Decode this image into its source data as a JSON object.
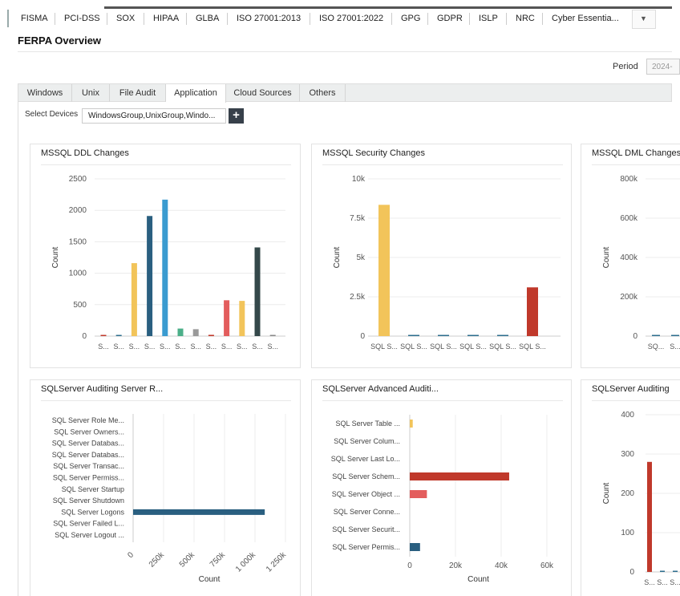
{
  "compliance_tabs": [
    "FISMA",
    "PCI-DSS",
    "SOX",
    "HIPAA",
    "GLBA",
    "ISO 27001:2013",
    "ISO 27001:2022",
    "GPG",
    "GDPR",
    "ISLP",
    "NRC",
    "Cyber Essentia..."
  ],
  "dropdown_icon": "caret-down-icon",
  "page_title": "FERPA Overview",
  "period": {
    "label": "Period",
    "value": "2024-"
  },
  "category_tabs": [
    "Windows",
    "Unix",
    "File Audit",
    "Application",
    "Cloud Sources",
    "Others"
  ],
  "active_category": "Application",
  "select_devices": {
    "label": "Select Devices",
    "value": "WindowsGroup,UnixGroup,Windo...",
    "add_label": "+"
  },
  "charts": {
    "ddl": {
      "title": "MSSQL DDL Changes",
      "chart_data": {
        "type": "bar",
        "ylabel": "Count",
        "ylim": [
          0,
          2500
        ],
        "yticks": [
          "0",
          "500",
          "1000",
          "1500",
          "2000",
          "2500"
        ],
        "categories": [
          "S...",
          "S...",
          "S...",
          "S...",
          "S...",
          "S...",
          "S...",
          "S...",
          "S...",
          "S...",
          "S...",
          "S..."
        ],
        "values": [
          15,
          0,
          1160,
          1910,
          2170,
          120,
          110,
          20,
          570,
          560,
          1410,
          10
        ],
        "colors": [
          "#c0392b",
          "#2c6e8e",
          "#f2c45a",
          "#2a5f80",
          "#3a9bd0",
          "#4caf89",
          "#999999",
          "#c0392b",
          "#e35d5d",
          "#f2c45a",
          "#34484a",
          "#888888"
        ]
      }
    },
    "security": {
      "title": "MSSQL Security Changes",
      "chart_data": {
        "type": "bar",
        "ylabel": "Count",
        "ylim": [
          0,
          10000
        ],
        "yticks": [
          "0",
          "2.5k",
          "5k",
          "7.5k",
          "10k"
        ],
        "categories": [
          "SQL S...",
          "SQL S...",
          "SQL S...",
          "SQL S...",
          "SQL S...",
          "SQL S..."
        ],
        "values": [
          8350,
          20,
          20,
          20,
          20,
          3100
        ],
        "colors": [
          "#f2c45a",
          "#2c6e8e",
          "#2c6e8e",
          "#2c6e8e",
          "#2c6e8e",
          "#c0392b"
        ]
      }
    },
    "dml": {
      "title": "MSSQL DML Changes",
      "chart_data": {
        "type": "bar",
        "ylabel": "Count",
        "ylim": [
          0,
          800000
        ],
        "yticks": [
          "0",
          "200k",
          "400k",
          "600k",
          "800k"
        ],
        "categories": [
          "SQ...",
          "S..."
        ],
        "values": [
          2000,
          2000
        ],
        "colors": [
          "#2c6e8e",
          "#2c6e8e"
        ]
      }
    },
    "server_r": {
      "title": "SQLServer Auditing Server R...",
      "chart_data": {
        "type": "bar-horizontal",
        "xlabel": "Count",
        "xlim": [
          0,
          1250000
        ],
        "xticks": [
          "0",
          "250k",
          "500k",
          "750k",
          "1 000k",
          "1 250k"
        ],
        "categories": [
          "SQL Server Role Me...",
          "SQL Server Owners...",
          "SQL Server Databas...",
          "SQL Server Databas...",
          "SQL Server Transac...",
          "SQL Server Permiss...",
          "SQL Server Startup",
          "SQL Server Shutdown",
          "SQL Server Logons",
          "SQL Server Failed L...",
          "SQL Server Logout ..."
        ],
        "values": [
          0,
          0,
          0,
          0,
          0,
          0,
          0,
          0,
          1080000,
          0,
          0
        ],
        "colors": [
          "#2a5f80",
          "#2a5f80",
          "#2a5f80",
          "#2a5f80",
          "#2a5f80",
          "#2a5f80",
          "#2a5f80",
          "#2a5f80",
          "#2a5f80",
          "#2a5f80",
          "#2a5f80"
        ]
      }
    },
    "advanced": {
      "title": "SQLServer Advanced Auditi...",
      "chart_data": {
        "type": "bar-horizontal",
        "xlabel": "Count",
        "xlim": [
          0,
          60000
        ],
        "xticks": [
          "0",
          "20k",
          "40k",
          "60k"
        ],
        "categories": [
          "SQL Server Table ...",
          "SQL Server Colum...",
          "SQL Server Last Lo...",
          "SQL Server Schem...",
          "SQL Server Object ...",
          "SQL Server Conne...",
          "SQL Server Securit...",
          "SQL Server Permis..."
        ],
        "values": [
          1300,
          0,
          0,
          43500,
          7500,
          0,
          0,
          4500
        ],
        "colors": [
          "#f2c45a",
          "#2c6e8e",
          "#2c6e8e",
          "#c0392b",
          "#e35d5d",
          "#2c6e8e",
          "#2c6e8e",
          "#2a5f80"
        ]
      }
    },
    "auditing3": {
      "title": "SQLServer Auditing",
      "chart_data": {
        "type": "bar",
        "ylabel": "Count",
        "ylim": [
          0,
          400
        ],
        "yticks": [
          "0",
          "100",
          "200",
          "300",
          "400"
        ],
        "categories": [
          "S...",
          "S...",
          "S..."
        ],
        "values": [
          280,
          2,
          2
        ],
        "colors": [
          "#c0392b",
          "#2c6e8e",
          "#2c6e8e"
        ]
      }
    }
  }
}
